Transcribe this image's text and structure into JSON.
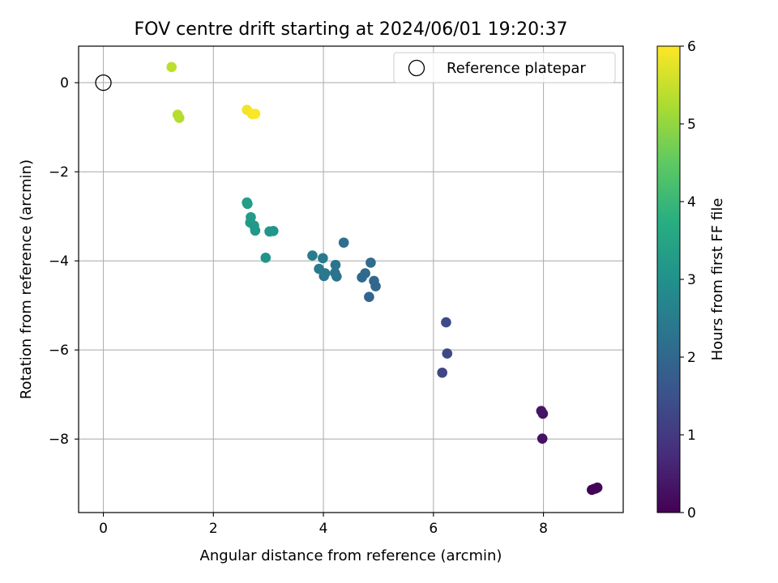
{
  "chart_data": {
    "type": "scatter",
    "title": "FOV centre drift starting at 2024/06/01 19:20:37",
    "xlabel": "Angular distance from reference (arcmin)",
    "ylabel": "Rotation from reference (arcmin)",
    "xlim": [
      -0.45,
      9.45
    ],
    "ylim": [
      -9.65,
      0.82
    ],
    "xticks": [
      0,
      2,
      4,
      6,
      8
    ],
    "yticks": [
      0,
      -2,
      -4,
      -6,
      -8
    ],
    "xtick_labels": [
      "0",
      "2",
      "4",
      "6",
      "8"
    ],
    "ytick_labels": [
      "0",
      "−2",
      "−4",
      "−6",
      "−8"
    ],
    "grid": true,
    "legend": {
      "position": "top-right",
      "entries": [
        "Reference platepar"
      ]
    },
    "reference_point": {
      "x": 0.0,
      "y": 0.0,
      "marker": "open-circle"
    },
    "colormap": "viridis",
    "colorbar": {
      "label": "Hours from first FF file",
      "range": [
        0,
        6
      ],
      "ticks": [
        0,
        1,
        2,
        3,
        4,
        5,
        6
      ],
      "tick_labels": [
        "0",
        "1",
        "2",
        "3",
        "4",
        "5",
        "6"
      ]
    },
    "points": [
      {
        "x": 8.88,
        "y": -9.14,
        "hours": 0.0
      },
      {
        "x": 8.92,
        "y": -9.12,
        "hours": 0.03
      },
      {
        "x": 8.95,
        "y": -9.11,
        "hours": 0.06
      },
      {
        "x": 8.98,
        "y": -9.09,
        "hours": 0.09
      },
      {
        "x": 7.98,
        "y": -7.99,
        "hours": 0.28
      },
      {
        "x": 7.99,
        "y": -7.43,
        "hours": 0.32
      },
      {
        "x": 7.96,
        "y": -7.37,
        "hours": 0.35
      },
      {
        "x": 6.16,
        "y": -6.51,
        "hours": 1.25
      },
      {
        "x": 6.25,
        "y": -6.08,
        "hours": 1.3
      },
      {
        "x": 6.23,
        "y": -5.38,
        "hours": 1.35
      },
      {
        "x": 4.83,
        "y": -4.81,
        "hours": 1.92
      },
      {
        "x": 4.95,
        "y": -4.57,
        "hours": 1.97
      },
      {
        "x": 4.92,
        "y": -4.45,
        "hours": 2.0
      },
      {
        "x": 4.7,
        "y": -4.37,
        "hours": 2.03
      },
      {
        "x": 4.76,
        "y": -4.28,
        "hours": 2.06
      },
      {
        "x": 4.86,
        "y": -4.04,
        "hours": 2.1
      },
      {
        "x": 4.37,
        "y": -3.59,
        "hours": 2.15
      },
      {
        "x": 4.24,
        "y": -4.35,
        "hours": 2.25
      },
      {
        "x": 4.21,
        "y": -4.27,
        "hours": 2.28
      },
      {
        "x": 4.22,
        "y": -4.09,
        "hours": 2.31
      },
      {
        "x": 4.01,
        "y": -4.34,
        "hours": 2.35
      },
      {
        "x": 4.03,
        "y": -4.28,
        "hours": 2.38
      },
      {
        "x": 3.92,
        "y": -4.18,
        "hours": 2.41
      },
      {
        "x": 3.99,
        "y": -3.94,
        "hours": 2.44
      },
      {
        "x": 3.8,
        "y": -3.88,
        "hours": 2.5
      },
      {
        "x": 2.95,
        "y": -3.93,
        "hours": 3.05
      },
      {
        "x": 3.09,
        "y": -3.33,
        "hours": 3.1
      },
      {
        "x": 3.02,
        "y": -3.34,
        "hours": 3.13
      },
      {
        "x": 2.76,
        "y": -3.32,
        "hours": 3.17
      },
      {
        "x": 2.74,
        "y": -3.21,
        "hours": 3.2
      },
      {
        "x": 2.67,
        "y": -3.14,
        "hours": 3.23
      },
      {
        "x": 2.68,
        "y": -3.02,
        "hours": 3.26
      },
      {
        "x": 2.62,
        "y": -2.72,
        "hours": 3.3
      },
      {
        "x": 2.61,
        "y": -2.69,
        "hours": 3.33
      },
      {
        "x": 1.38,
        "y": -0.79,
        "hours": 5.3
      },
      {
        "x": 1.35,
        "y": -0.72,
        "hours": 5.33
      },
      {
        "x": 1.24,
        "y": 0.35,
        "hours": 5.4
      },
      {
        "x": 2.61,
        "y": -0.61,
        "hours": 5.88
      },
      {
        "x": 2.7,
        "y": -0.7,
        "hours": 5.93
      },
      {
        "x": 2.76,
        "y": -0.7,
        "hours": 5.97
      }
    ]
  }
}
